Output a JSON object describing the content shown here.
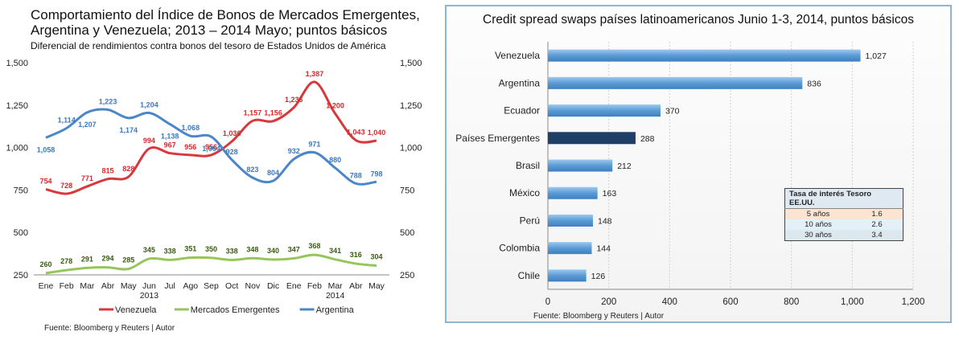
{
  "chart_data": [
    {
      "type": "line",
      "title": "Comportamiento del Índice  de Bonos de Mercados Emergentes, Argentina y Venezuela; 2013 – 2014 Mayo; puntos básicos",
      "subtitle": "Diferencial de rendimientos contra bonos del tesoro de Estados Unidos de América",
      "categories": [
        "Ene",
        "Feb",
        "Mar",
        "Abr",
        "May",
        "Jun",
        "Jul",
        "Ago",
        "Sep",
        "Oct",
        "Nov",
        "Dic",
        "Ene",
        "Feb",
        "Mar",
        "Abr",
        "May"
      ],
      "year_labels": [
        {
          "label": "2013",
          "at_index": 5
        },
        {
          "label": "2014",
          "at_index": 14
        }
      ],
      "yticks": [
        "250",
        "500",
        "750",
        "1,000",
        "1,250",
        "1,500"
      ],
      "ylim": [
        250,
        1500
      ],
      "series": [
        {
          "name": "Venezuela",
          "color": "#d9383b",
          "values": [
            754,
            728,
            771,
            815,
            828,
            994,
            967,
            956,
            956,
            1036,
            1157,
            1156,
            1236,
            1387,
            1200,
            1043,
            1040
          ],
          "labels": [
            "754",
            "728",
            "771",
            "815",
            "828",
            "994",
            "967",
            "956",
            "956",
            "1,036",
            "1,157",
            "1,156",
            "1,236",
            "1,387",
            "1,200",
            "1,043",
            "1,040"
          ]
        },
        {
          "name": "Mercados Emergentes",
          "color": "#94c65a",
          "values": [
            260,
            278,
            291,
            294,
            285,
            345,
            338,
            351,
            350,
            338,
            348,
            340,
            347,
            368,
            341,
            316,
            304
          ],
          "labels": [
            "260",
            "278",
            "291",
            "294",
            "285",
            "345",
            "338",
            "351",
            "350",
            "338",
            "348",
            "340",
            "347",
            "368",
            "341",
            "316",
            "304"
          ]
        },
        {
          "name": "Argentina",
          "color": "#4a86c8",
          "values": [
            1058,
            1114,
            1207,
            1223,
            1174,
            1204,
            1138,
            1068,
            1064,
            928,
            823,
            804,
            932,
            971,
            880,
            788,
            798
          ],
          "labels": [
            "1,058",
            "1,114",
            "1,207",
            "1,223",
            "1,174",
            "1,204",
            "1,138",
            "1,068",
            "1,064",
            "928",
            "823",
            "804",
            "932",
            "971",
            "880",
            "788",
            "798"
          ]
        }
      ],
      "legend_position": "bottom",
      "grid": false,
      "source": "Fuente: Bloomberg y Reuters  |  Autor"
    },
    {
      "type": "bar",
      "orientation": "horizontal",
      "title": "Credit spread swaps países latinoamericanos  Junio 1-3, 2014, puntos básicos",
      "categories": [
        "Venezuela",
        "Argentina",
        "Ecuador",
        "Países Emergentes",
        "Brasil",
        "México",
        "Perú",
        "Colombia",
        "Chile"
      ],
      "values": [
        1027,
        836,
        370,
        288,
        212,
        163,
        148,
        144,
        126
      ],
      "labels": [
        "1,027",
        "836",
        "370",
        "288",
        "212",
        "163",
        "148",
        "144",
        "126"
      ],
      "highlight_index": 3,
      "bar_color": "#5b9bd5",
      "highlight_color": "#1f3f66",
      "xlim": [
        0,
        1200
      ],
      "xticks": [
        "0",
        "200",
        "400",
        "600",
        "800",
        "1,000",
        "1,200"
      ],
      "grid": true,
      "source": "Fuente: Bloomberg y Reuters  |  Autor",
      "table": {
        "header": "Tasa de interés Tesoro EE.UU.",
        "rows": [
          {
            "term": "5 años",
            "rate": "1.6"
          },
          {
            "term": "10 años",
            "rate": "2.6"
          },
          {
            "term": "30 años",
            "rate": "3.4"
          }
        ]
      }
    }
  ]
}
